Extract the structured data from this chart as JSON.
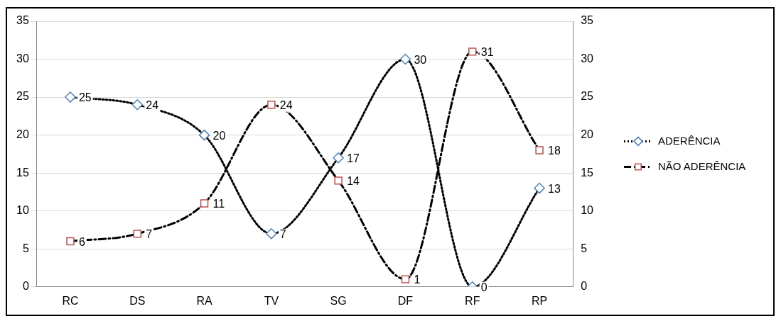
{
  "chart_data": {
    "type": "line",
    "categories": [
      "RC",
      "DS",
      "RA",
      "TV",
      "SG",
      "DF",
      "RF",
      "RP"
    ],
    "series": [
      {
        "name": "ADERÊNCIA",
        "color": "#4f81bd",
        "values": [
          25,
          24,
          20,
          7,
          17,
          30,
          0,
          13
        ],
        "line_style": "dotted",
        "marker": "diamond"
      },
      {
        "name": "NÃO ADERÊNCIA",
        "color": "#c0504d",
        "values": [
          6,
          7,
          11,
          24,
          14,
          1,
          31,
          18
        ],
        "line_style": "dashed",
        "marker": "square"
      }
    ],
    "ylim": [
      0,
      35
    ],
    "yticks": [
      0,
      5,
      10,
      15,
      20,
      25,
      30,
      35
    ],
    "y2lim": [
      0,
      35
    ],
    "y2ticks": [
      0,
      5,
      10,
      15,
      20,
      25,
      30,
      35
    ],
    "grid": "y",
    "legend": "right",
    "data_labels": true
  }
}
